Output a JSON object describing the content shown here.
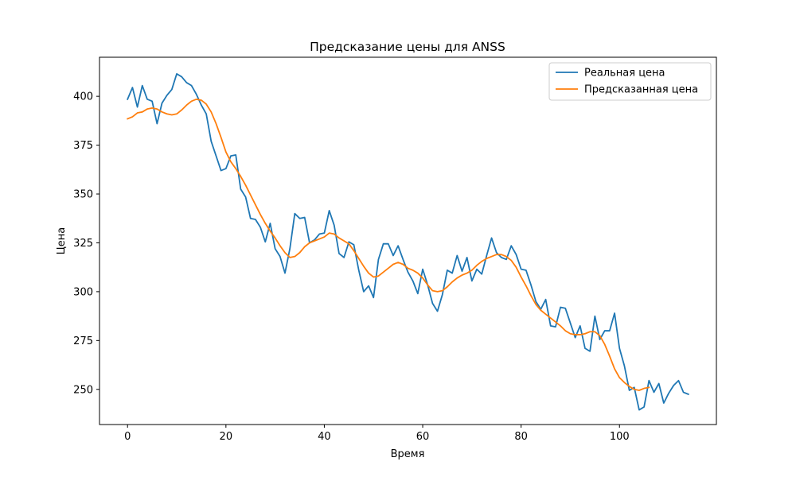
{
  "chart_data": {
    "type": "line",
    "title": "Предсказание цены для ANSS",
    "xlabel": "Время",
    "ylabel": "Цена",
    "xlim": [
      -5.7,
      119.7
    ],
    "ylim": [
      232,
      420
    ],
    "xticks": [
      0,
      20,
      40,
      60,
      80,
      100
    ],
    "yticks": [
      250,
      275,
      300,
      325,
      350,
      375,
      400
    ],
    "legend_position": "top-right",
    "grid": false,
    "series": [
      {
        "name": "Реальная цена",
        "color": "#1f77b4",
        "values": [
          398.5,
          404.5,
          394.5,
          405.5,
          398.5,
          397.5,
          386.0,
          396.5,
          400.5,
          403.5,
          411.5,
          410.0,
          407.0,
          405.5,
          401.0,
          395.5,
          391.0,
          377.0,
          369.5,
          362.0,
          363.0,
          369.5,
          370.0,
          352.5,
          348.5,
          337.5,
          337.0,
          333.0,
          325.5,
          335.0,
          322.0,
          318.0,
          309.5,
          322.0,
          340.0,
          337.5,
          338.0,
          325.0,
          326.5,
          329.5,
          330.0,
          341.5,
          334.0,
          319.5,
          317.5,
          325.5,
          324.0,
          311.0,
          300.0,
          303.0,
          297.0,
          316.5,
          324.5,
          324.5,
          318.5,
          323.5,
          316.5,
          310.0,
          305.5,
          299.0,
          311.5,
          303.5,
          294.0,
          290.0,
          298.5,
          311.0,
          309.5,
          318.5,
          310.5,
          317.5,
          305.5,
          311.5,
          309.0,
          318.5,
          327.5,
          320.0,
          317.5,
          316.5,
          323.5,
          319.0,
          311.5,
          311.0,
          303.5,
          295.0,
          291.0,
          296.0,
          282.5,
          282.0,
          292.0,
          291.5,
          284.0,
          276.5,
          282.5,
          271.0,
          269.5,
          287.5,
          275.5,
          280.0,
          280.0,
          289.0,
          271.0,
          262.0,
          249.5,
          251.0,
          239.5,
          241.0,
          254.5,
          248.5,
          253.0,
          243.0,
          248.0,
          252.0,
          254.5,
          248.5,
          247.5
        ]
      },
      {
        "name": "Предсказанная цена",
        "color": "#ff7f0e",
        "values": [
          388.5,
          389.5,
          391.5,
          392.0,
          393.5,
          394.0,
          393.5,
          392.0,
          391.0,
          390.5,
          391.0,
          393.0,
          395.5,
          397.5,
          398.5,
          398.0,
          396.0,
          392.0,
          386.0,
          379.0,
          371.5,
          366.5,
          363.0,
          359.0,
          354.5,
          349.5,
          344.5,
          339.5,
          335.0,
          331.0,
          327.5,
          323.5,
          320.0,
          317.5,
          318.0,
          320.0,
          323.0,
          325.0,
          326.0,
          327.0,
          328.0,
          330.0,
          329.5,
          327.5,
          326.0,
          324.5,
          321.0,
          317.0,
          313.0,
          309.5,
          307.5,
          308.0,
          310.0,
          312.0,
          314.0,
          315.0,
          314.0,
          312.0,
          311.0,
          309.5,
          307.0,
          303.5,
          300.5,
          300.0,
          300.5,
          302.5,
          305.0,
          307.0,
          308.5,
          309.5,
          311.0,
          313.5,
          315.5,
          317.0,
          318.0,
          319.0,
          319.0,
          318.0,
          316.0,
          312.5,
          307.5,
          303.0,
          298.0,
          293.5,
          290.5,
          288.5,
          286.5,
          284.5,
          282.5,
          280.0,
          278.5,
          278.0,
          278.0,
          278.5,
          279.5,
          279.5,
          277.5,
          273.0,
          267.0,
          260.5,
          256.0,
          253.5,
          251.5,
          250.0,
          249.5,
          250.5,
          251.0
        ]
      }
    ]
  }
}
